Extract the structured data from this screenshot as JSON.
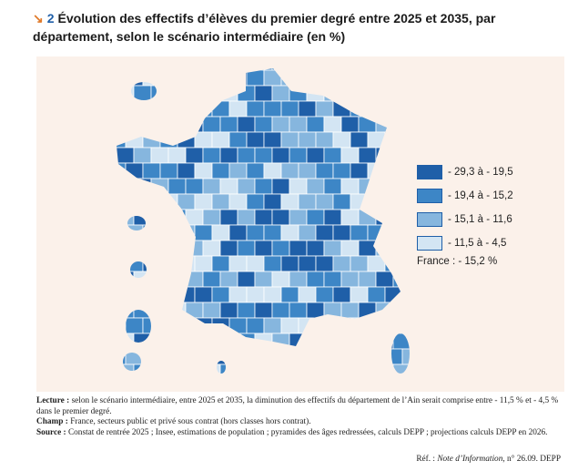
{
  "figure_number": "2",
  "title": "Évolution des effectifs d’élèves du premier degré entre 2025 et 2035, par département, selon le scénario intermédiaire (en %)",
  "legend": [
    {
      "label": "- 29,3 à - 19,5",
      "color": "#1f5fa8"
    },
    {
      "label": "- 19,4 à - 15,2",
      "color": "#3d86c6"
    },
    {
      "label": "- 15,1 à - 11,6",
      "color": "#86b6de"
    },
    {
      "label": "- 11,5 à - 4,5",
      "color": "#d3e5f3"
    }
  ],
  "france_note": "France : - 15,2 %",
  "notes": [
    {
      "label": "Lecture :",
      "text": "selon le scénario intermédiaire, entre 2025 et 2035, la diminution des effectifs du département de l’Ain serait comprise entre - 11,5 % et - 4,5 % dans le premier degré."
    },
    {
      "label": "Champ :",
      "text": "France, secteurs public et privé sous contrat (hors classes hors contrat)."
    },
    {
      "label": "Source :",
      "text": "Constat de rentrée 2025 ; Insee, estimations de population ; pyramides des âges redressées, calculs DEPP ; projections calculs DEPP en 2026."
    }
  ],
  "ref": {
    "prefix": "Réf. :",
    "italic": "Note d’Information",
    "suffix": ", n° 26.09. DEPP"
  }
}
